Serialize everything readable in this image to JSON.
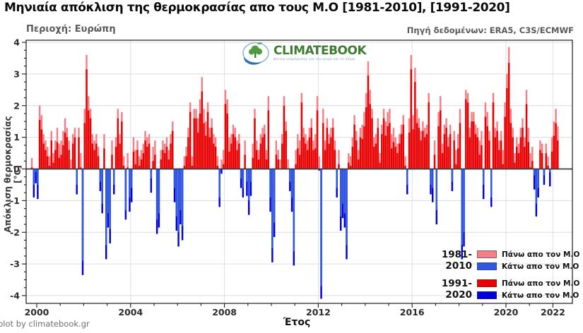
{
  "title": "Μηνιαία απόκλιση της θερμοκρασίας απο τους Μ.Ο [1981-2010], [1991-2020]",
  "region_label": "Περιοχή: Ευρώπη",
  "source_label": "Πηγή δεδομένων: ERA5, C3S/ECMWF",
  "credit": "plot by climatebook.gr",
  "logo": {
    "brand": "CLIMATEBOOK",
    "tagline": "Δίκτυο ενημέρωσης για τον καιρό και το κλίμα"
  },
  "colors": {
    "above_1981": "#f28086",
    "below_1981": "#3057e1",
    "above_1991": "#ea0000",
    "below_1991": "#0000dd",
    "grid": "#dcdcdc",
    "axis": "#1a1a1a",
    "zero_line": "#3d3d3d",
    "brand_green": "#3e7d33",
    "logo_blue": "#2d6fb5"
  },
  "legend": {
    "groups": [
      {
        "period": "1981-2010",
        "entries": [
          {
            "label": "Πάνω απο τον Μ.Ο",
            "color_path": "colors.above_1981"
          },
          {
            "label": "Κάτω απο τον Μ.Ο",
            "color_path": "colors.below_1981"
          }
        ]
      },
      {
        "period": "1991-2020",
        "entries": [
          {
            "label": "Πάνω απο τον Μ.Ο",
            "color_path": "colors.above_1991"
          },
          {
            "label": "Κάτω απο τον Μ.Ο",
            "color_path": "colors.below_1991"
          }
        ]
      }
    ]
  },
  "chart_data": {
    "type": "bar",
    "title": "Μηνιαία απόκλιση της θερμοκρασίας απο τους Μ.Ο [1981-2010], [1991-2020]",
    "xlabel": "Έτος",
    "ylabel": "Απόκλιση θερμοκρασίας [°C]",
    "xlim": [
      1999.55,
      2022.83
    ],
    "ylim": [
      -4.25,
      4.07
    ],
    "x_ticks": [
      2000,
      2004,
      2008,
      2012,
      2016,
      2020,
      2022
    ],
    "x_minor_tick_step_years": 1,
    "y_ticks": [
      -4,
      -3,
      -2,
      -1,
      0,
      1,
      2,
      3,
      4
    ],
    "y_minor_tick_step": 0.25,
    "grid": true,
    "grid_years": [
      2004,
      2008,
      2012,
      2016,
      2020,
      2022
    ],
    "legend_position": "lower right",
    "start": {
      "year": 1999,
      "month": 10
    },
    "frequency": "monthly",
    "series": [
      {
        "name": "Απόκλιση από τον Μ.Ο 1981-2010",
        "color_above": "#f28086",
        "color_below": "#3057e1",
        "values": [
          0.35,
          -0.5,
          -0.1,
          -0.5,
          2.0,
          1.7,
          1.1,
          0.9,
          0.7,
          0.4,
          1.2,
          0.5,
          0.9,
          1.3,
          0.8,
          0.9,
          1.2,
          1.6,
          1.3,
          0.9,
          0.3,
          1.1,
          1.3,
          -0.5,
          1.3,
          0.5,
          -2.9,
          1.9,
          3.6,
          2.3,
          1.9,
          1.1,
          0.9,
          1.1,
          0.7,
          -0.4,
          -1.1,
          1.1,
          -2.4,
          -1.4,
          -1.9,
          0.9,
          -0.5,
          1.0,
          1.9,
          1.1,
          1.8,
          0.4,
          -1.3,
          0.5,
          -0.9,
          -0.6,
          1.0,
          0.6,
          0.9,
          0.4,
          0.6,
          0.8,
          1.2,
          1.0,
          1.1,
          -0.3,
          0.7,
          0.9,
          -1.6,
          -1.4,
          0.6,
          0.9,
          0.8,
          1.0,
          0.6,
          1.1,
          1.5,
          -0.6,
          -1.5,
          -2.0,
          -1.3,
          -1.8,
          0.4,
          0.7,
          1.3,
          2.1,
          0.4,
          1.9,
          1.9,
          1.6,
          2.2,
          2.9,
          1.9,
          1.5,
          2.1,
          1.3,
          1.6,
          1.1,
          1.0,
          0.4,
          -0.9,
          0.3,
          0.6,
          2.5,
          2.2,
          1.0,
          1.1,
          1.4,
          1.3,
          0.9,
          1.1,
          -0.3,
          -0.6,
          0.9,
          -0.4,
          -1.0,
          -0.4,
          0.8,
          1.9,
          0.9,
          0.6,
          1.1,
          1.3,
          1.4,
          0.6,
          2.3,
          -0.9,
          -2.5,
          -1.7,
          0.9,
          0.6,
          0.3,
          1.1,
          2.3,
          1.5,
          0.3,
          -0.4,
          -0.9,
          -2.6,
          0.6,
          1.1,
          0.9,
          2.4,
          1.3,
          1.1,
          0.9,
          1.3,
          1.6,
          0.9,
          1.1,
          2.3,
          0.4,
          -3.7,
          1.9,
          0.9,
          1.6,
          1.1,
          1.3,
          1.6,
          0.9,
          -0.6,
          0.6,
          -1.5,
          -1.1,
          -1.4,
          -2.4,
          0.5,
          0.4,
          1.0,
          1.7,
          1.2,
          0.6,
          1.3,
          1.4,
          1.8,
          2.4,
          3.4,
          2.5,
          1.9,
          1.0,
          1.1,
          1.6,
          0.5,
          1.4,
          1.9,
          1.5,
          1.8,
          1.9,
          1.1,
          1.3,
          1.0,
          0.8,
          1.1,
          1.4,
          1.7,
          0.4,
          -0.5,
          1.6,
          3.6,
          1.7,
          3.2,
          1.9,
          1.6,
          1.2,
          1.5,
          1.3,
          1.4,
          2.4,
          -0.5,
          -0.6,
          0.9,
          -1.3,
          1.8,
          2.3,
          0.8,
          1.4,
          1.6,
          1.0,
          1.4,
          -0.4,
          1.2,
          0.6,
          1.1,
          1.9,
          -2.4,
          -2.0,
          2.5,
          2.4,
          1.3,
          1.8,
          1.8,
          1.4,
          1.3,
          0.9,
          1.2,
          -0.5,
          2.1,
          1.8,
          1.2,
          -0.9,
          2.4,
          1.3,
          1.5,
          0.9,
          1.2,
          0.6,
          2.1,
          3.0,
          3.85,
          1.9,
          1.3,
          0.5,
          1.0,
          0.8,
          1.3,
          1.6,
          1.0,
          2.5,
          1.3,
          0.5,
          0.7,
          -0.2,
          -1.1,
          -0.6,
          0.9,
          0.8,
          -0.2,
          0.8,
          0.4,
          -0.1,
          1.0,
          1.5,
          1.9,
          1.35
        ]
      },
      {
        "name": "Απόκλιση από τον Μ.Ο 1991-2020",
        "color_above": "#ea0000",
        "color_below": "#0000dd",
        "values": [
          0.05,
          -0.9,
          -0.45,
          -0.95,
          1.55,
          1.25,
          0.8,
          0.6,
          0.4,
          0.1,
          0.9,
          0.2,
          0.6,
          0.85,
          0.35,
          0.45,
          0.75,
          1.15,
          1.0,
          0.6,
          0.0,
          0.8,
          1.0,
          -0.8,
          1.0,
          0.05,
          -3.35,
          1.45,
          3.15,
          1.85,
          1.6,
          0.8,
          0.6,
          0.8,
          0.4,
          -0.7,
          -1.4,
          0.65,
          -2.85,
          -1.85,
          -2.35,
          0.45,
          -0.8,
          0.7,
          1.6,
          0.8,
          1.5,
          0.1,
          -1.6,
          0.05,
          -1.35,
          -1.05,
          0.55,
          0.15,
          0.6,
          0.1,
          0.3,
          0.5,
          0.9,
          0.7,
          0.8,
          -0.75,
          0.25,
          0.45,
          -2.05,
          -1.85,
          0.3,
          0.6,
          0.5,
          0.7,
          0.3,
          0.8,
          1.2,
          -1.05,
          -1.95,
          -2.45,
          -1.75,
          -2.25,
          0.1,
          0.4,
          1.0,
          1.8,
          0.1,
          1.6,
          1.6,
          1.15,
          1.75,
          2.45,
          1.45,
          1.05,
          1.8,
          1.0,
          1.3,
          0.8,
          0.7,
          0.1,
          -1.2,
          -0.15,
          0.15,
          2.05,
          1.75,
          0.55,
          0.8,
          1.1,
          1.0,
          0.6,
          0.8,
          -0.6,
          -0.9,
          0.45,
          -0.85,
          -1.45,
          -0.85,
          0.35,
          1.6,
          0.6,
          0.3,
          0.8,
          1.0,
          1.1,
          0.3,
          1.85,
          -1.35,
          -2.95,
          -2.15,
          0.45,
          0.3,
          0.0,
          0.8,
          2.0,
          1.2,
          0.0,
          -0.7,
          -1.35,
          -3.05,
          0.15,
          0.65,
          0.45,
          2.1,
          1.0,
          0.8,
          0.6,
          1.0,
          1.3,
          0.6,
          0.65,
          1.85,
          -0.05,
          -4.1,
          1.45,
          0.6,
          1.3,
          0.8,
          1.0,
          1.3,
          0.6,
          -0.9,
          0.15,
          -1.95,
          -1.55,
          -1.85,
          -2.85,
          0.2,
          0.1,
          0.7,
          1.4,
          0.9,
          0.3,
          1.0,
          0.95,
          1.35,
          1.95,
          2.95,
          2.05,
          1.6,
          0.7,
          0.8,
          1.3,
          0.2,
          1.1,
          1.6,
          1.05,
          1.35,
          1.45,
          0.65,
          0.85,
          0.7,
          0.5,
          0.8,
          1.1,
          1.4,
          0.1,
          -0.8,
          1.15,
          3.15,
          1.25,
          2.75,
          1.45,
          1.3,
          0.9,
          1.2,
          1.0,
          1.1,
          2.1,
          -0.8,
          -1.05,
          0.45,
          -1.75,
          1.35,
          1.85,
          0.5,
          1.1,
          1.3,
          0.7,
          1.1,
          -0.7,
          0.9,
          0.15,
          0.65,
          1.45,
          -2.85,
          -2.45,
          2.2,
          2.1,
          1.0,
          1.5,
          1.5,
          1.1,
          1.0,
          0.45,
          0.75,
          -0.95,
          1.65,
          1.35,
          0.9,
          -1.2,
          2.1,
          1.0,
          1.2,
          0.6,
          0.9,
          0.15,
          1.65,
          2.55,
          3.35,
          1.45,
          1.0,
          0.2,
          0.7,
          0.5,
          1.0,
          1.3,
          0.7,
          2.05,
          0.85,
          0.05,
          0.25,
          -0.65,
          -1.5,
          -0.9,
          0.6,
          0.5,
          -0.5,
          0.5,
          0.1,
          -0.55,
          0.55,
          1.05,
          1.45,
          0.9
        ]
      }
    ]
  }
}
